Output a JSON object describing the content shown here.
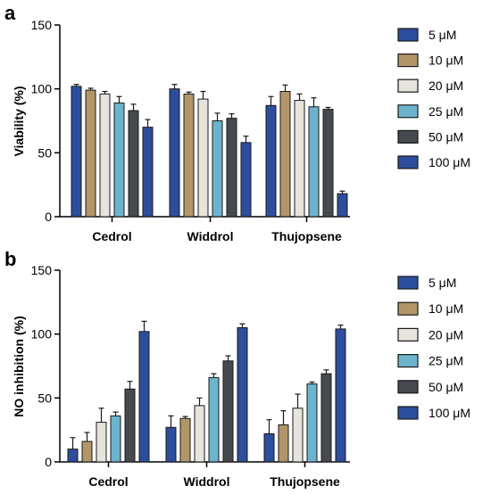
{
  "chart_data": [
    {
      "type": "bar",
      "panel_label": "a",
      "ylabel": "Viability (%)",
      "categories": [
        "Cedrol",
        "Widdrol",
        "Thujopsene"
      ],
      "ylim": [
        0,
        150
      ],
      "yticks": [
        "0",
        "50",
        "100",
        "150"
      ],
      "legend_position": "right",
      "series": [
        {
          "name": "5 μM",
          "color": "#2c4e9c",
          "values": [
            102,
            100,
            87
          ],
          "errors": [
            1.5,
            3.5,
            7
          ]
        },
        {
          "name": "10 μM",
          "color": "#b2966a",
          "values": [
            99,
            96,
            98
          ],
          "errors": [
            1.5,
            1.5,
            5
          ]
        },
        {
          "name": "20 μM",
          "color": "#e6e4dc",
          "values": [
            96,
            92,
            91
          ],
          "errors": [
            2,
            6,
            5
          ]
        },
        {
          "name": "25 μM",
          "color": "#6cb4cc",
          "values": [
            89,
            75,
            86
          ],
          "errors": [
            5,
            6,
            7
          ]
        },
        {
          "name": "50 μM",
          "color": "#46494e",
          "values": [
            83,
            77,
            84
          ],
          "errors": [
            5,
            3.5,
            1.5
          ]
        },
        {
          "name": "100 μM",
          "color": "#2c4e9c",
          "values": [
            70,
            58,
            18
          ],
          "errors": [
            6,
            5,
            2
          ]
        }
      ]
    },
    {
      "type": "bar",
      "panel_label": "b",
      "ylabel": "NO inhibition (%)",
      "categories": [
        "Cedrol",
        "Widdrol",
        "Thujopsene"
      ],
      "ylim": [
        0,
        150
      ],
      "yticks": [
        "0",
        "50",
        "100",
        "150"
      ],
      "legend_position": "right",
      "series": [
        {
          "name": "5 μM",
          "color": "#2c4e9c",
          "values": [
            10,
            27,
            22
          ],
          "errors": [
            9,
            9,
            11
          ]
        },
        {
          "name": "10 μM",
          "color": "#b2966a",
          "values": [
            16,
            34,
            29
          ],
          "errors": [
            7,
            1.5,
            11
          ]
        },
        {
          "name": "20 μM",
          "color": "#e6e4dc",
          "values": [
            31,
            44,
            42
          ],
          "errors": [
            11,
            6,
            11
          ]
        },
        {
          "name": "25 μM",
          "color": "#6cb4cc",
          "values": [
            36,
            66,
            61
          ],
          "errors": [
            3,
            3,
            1.5
          ]
        },
        {
          "name": "50 μM",
          "color": "#46494e",
          "values": [
            57,
            79,
            69
          ],
          "errors": [
            6,
            4,
            3
          ]
        },
        {
          "name": "100 μM",
          "color": "#2c4e9c",
          "values": [
            102,
            105,
            104
          ],
          "errors": [
            8,
            3,
            3
          ]
        }
      ]
    }
  ]
}
